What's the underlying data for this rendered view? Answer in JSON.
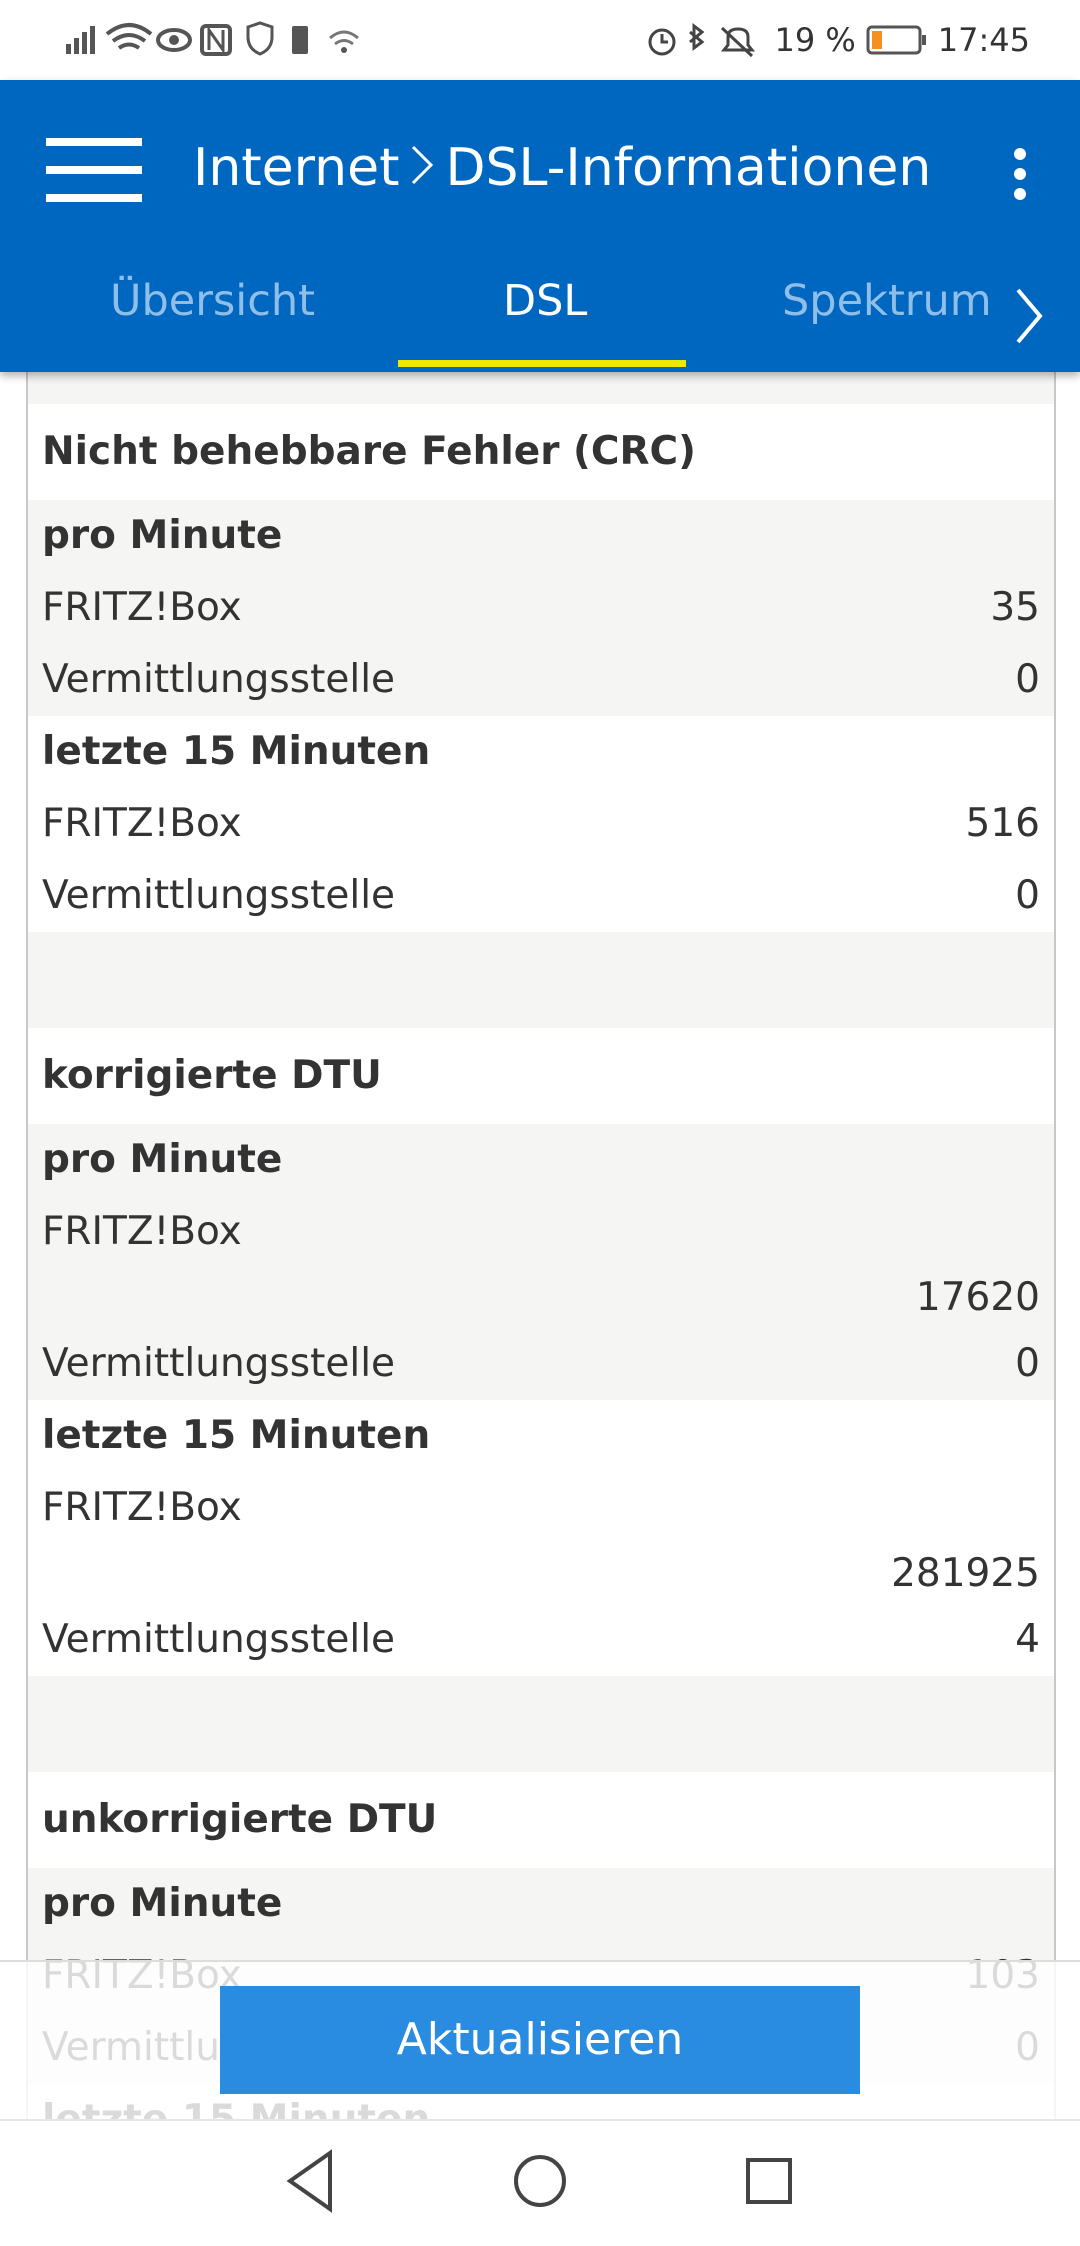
{
  "status_bar": {
    "battery": "19 %",
    "time": "17:45"
  },
  "header": {
    "breadcrumb": [
      "Internet",
      "DSL-Informationen"
    ]
  },
  "tabs": [
    "Übersicht",
    "DSL",
    "Spektrum"
  ],
  "sections": [
    {
      "title": "Nicht behebbare Fehler (CRC)",
      "groups": [
        {
          "label": "pro Minute",
          "rows": [
            {
              "name": "FRITZ!Box",
              "value": "35"
            },
            {
              "name": "Vermittlungsstelle",
              "value": "0"
            }
          ]
        },
        {
          "label": "letzte 15 Minuten",
          "rows": [
            {
              "name": "FRITZ!Box",
              "value": "516"
            },
            {
              "name": "Vermittlungsstelle",
              "value": "0"
            }
          ]
        }
      ]
    },
    {
      "title": "korrigierte DTU",
      "groups": [
        {
          "label": "pro Minute",
          "rows": [
            {
              "name": "FRITZ!Box",
              "value": "17620"
            },
            {
              "name": "Vermittlungsstelle",
              "value": "0"
            }
          ]
        },
        {
          "label": "letzte 15 Minuten",
          "rows": [
            {
              "name": "FRITZ!Box",
              "value": "281925"
            },
            {
              "name": "Vermittlungsstelle",
              "value": "4"
            }
          ]
        }
      ]
    },
    {
      "title": "unkorrigierte DTU",
      "groups": [
        {
          "label": "pro Minute",
          "rows": [
            {
              "name": "FRITZ!Box",
              "value": "103"
            },
            {
              "name": "Vermittlungsstelle",
              "value": "0"
            }
          ]
        },
        {
          "label": "letzte 15 Minuten",
          "rows": []
        }
      ]
    }
  ],
  "button": "Aktualisieren"
}
